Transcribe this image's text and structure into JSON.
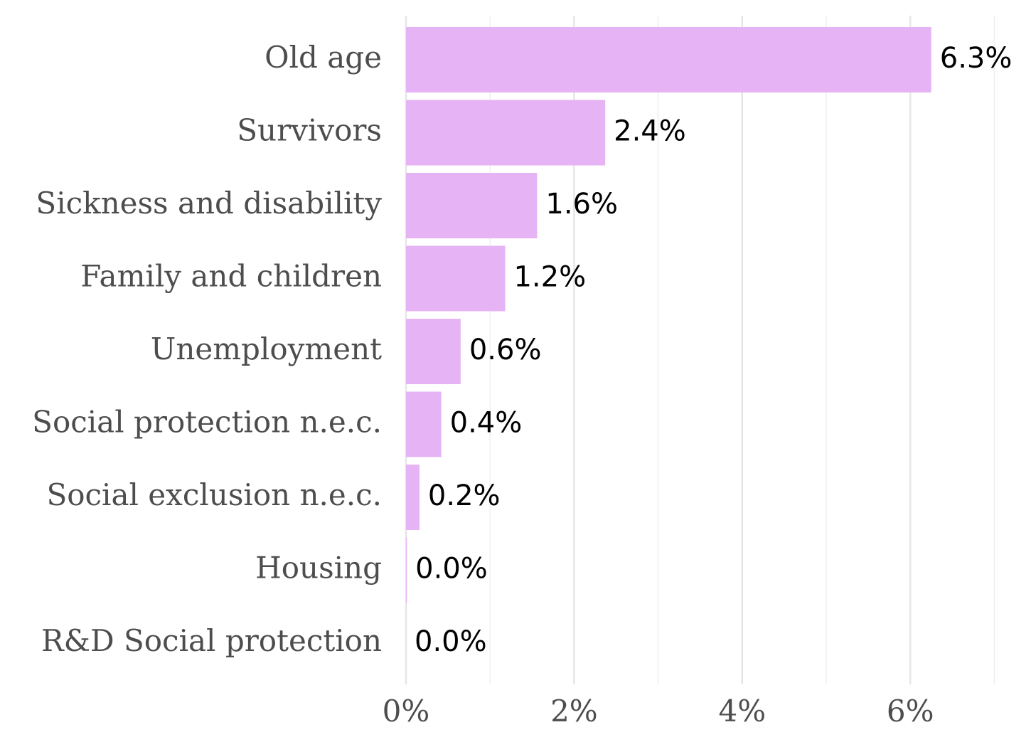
{
  "chart_data": {
    "type": "bar",
    "orientation": "horizontal",
    "categories": [
      "Old age",
      "Survivors",
      "Sickness and disability",
      "Family and children",
      "Unemployment",
      "Social protection n.e.c.",
      "Social exclusion n.e.c.",
      "Housing",
      "R&D Social protection"
    ],
    "values": [
      6.25,
      2.37,
      1.56,
      1.18,
      0.65,
      0.42,
      0.16,
      0.01,
      0.0
    ],
    "data_labels": [
      "6.3%",
      "2.4%",
      "1.6%",
      "1.2%",
      "0.6%",
      "0.4%",
      "0.2%",
      "0.0%",
      "0.0%"
    ],
    "title": "",
    "xlabel": "",
    "ylabel": "",
    "xlim": [
      0,
      7
    ],
    "x_ticks": [
      0,
      2,
      4,
      6
    ],
    "x_tick_labels": [
      "0%",
      "2%",
      "4%",
      "6%"
    ],
    "grid": true,
    "legend": "none",
    "bar_color": "#e6b3f5"
  }
}
